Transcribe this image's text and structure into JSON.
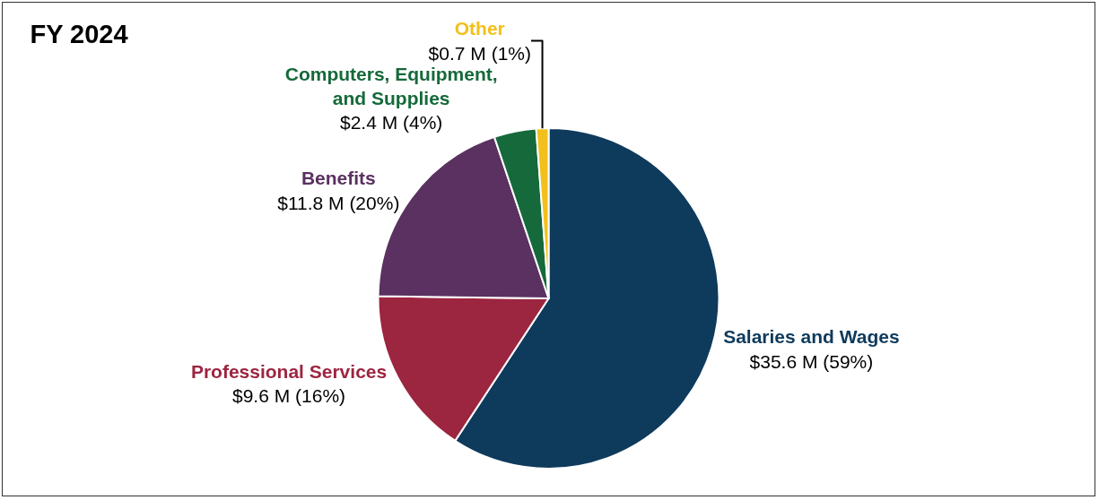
{
  "chart_data": {
    "type": "pie",
    "title": "FY 2024",
    "categories": [
      "Salaries and Wages",
      "Professional Services",
      "Benefits",
      "Computers, Equipment, and Supplies",
      "Other"
    ],
    "values": [
      35.6,
      9.6,
      11.8,
      2.4,
      0.7
    ],
    "colors": [
      "#0e3a5c",
      "#9c2540",
      "#5a3160",
      "#15693a",
      "#f2c01c"
    ],
    "value_labels": [
      "$35.6 M (59%)",
      "$9.6 M (16%)",
      "$11.8 M (20%)",
      "$2.4 M (4%)",
      "$0.7 M (1%)"
    ],
    "legend": false
  }
}
